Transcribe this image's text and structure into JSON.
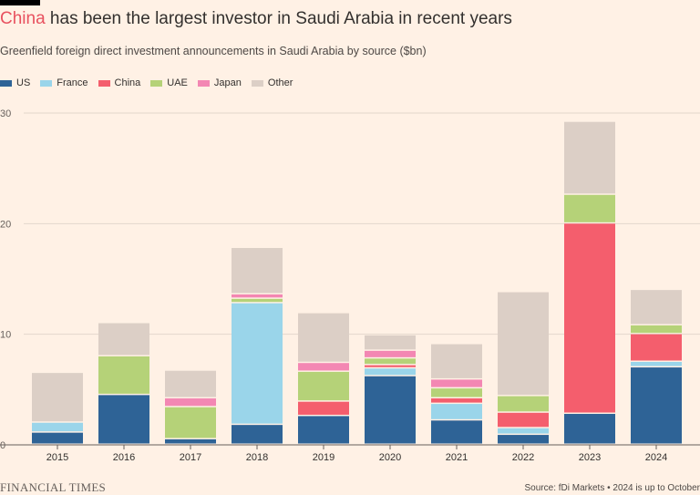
{
  "header": {
    "title_highlight": "China",
    "title_rest": " has been the largest investor in Saudi Arabia in recent years",
    "subtitle": "Greenfield foreign direct investment announcements in Saudi Arabia by source ($bn)"
  },
  "footer": {
    "brand": "FINANCIAL TIMES",
    "source": "Source: fDi Markets • 2024 is up to October"
  },
  "chart_data": {
    "type": "bar",
    "stacked": true,
    "title": "China has been the largest investor in Saudi Arabia in recent years",
    "subtitle": "Greenfield foreign direct investment announcements in Saudi Arabia by source ($bn)",
    "xlabel": "",
    "ylabel": "$bn",
    "ylim": [
      0,
      30
    ],
    "yticks": [
      0,
      10,
      20,
      30
    ],
    "grid": true,
    "legend_position": "top-left",
    "categories": [
      "2015",
      "2016",
      "2017",
      "2018",
      "2019",
      "2020",
      "2021",
      "2022",
      "2023",
      "2024"
    ],
    "series": [
      {
        "name": "US",
        "color": "#2e6396",
        "values": [
          1.1,
          4.5,
          0.5,
          1.8,
          2.6,
          6.2,
          2.2,
          0.9,
          2.8,
          7.0
        ]
      },
      {
        "name": "France",
        "color": "#9ad5ea",
        "values": [
          0.9,
          0.0,
          0.0,
          11.0,
          0.0,
          0.7,
          1.5,
          0.6,
          0.0,
          0.5
        ]
      },
      {
        "name": "China",
        "color": "#f45e6d",
        "values": [
          0.0,
          0.0,
          0.0,
          0.0,
          1.3,
          0.3,
          0.5,
          1.4,
          17.2,
          2.5
        ]
      },
      {
        "name": "UAE",
        "color": "#b5d278",
        "values": [
          0.0,
          3.5,
          2.9,
          0.4,
          2.7,
          0.6,
          0.9,
          1.5,
          2.6,
          0.8
        ]
      },
      {
        "name": "Japan",
        "color": "#f387b3",
        "values": [
          0.0,
          0.0,
          0.8,
          0.4,
          0.8,
          0.7,
          0.8,
          0.0,
          0.0,
          0.0
        ]
      },
      {
        "name": "Other",
        "color": "#dccfc6",
        "values": [
          4.5,
          3.0,
          2.5,
          4.2,
          4.5,
          1.4,
          3.2,
          9.4,
          6.6,
          3.2
        ]
      }
    ]
  }
}
